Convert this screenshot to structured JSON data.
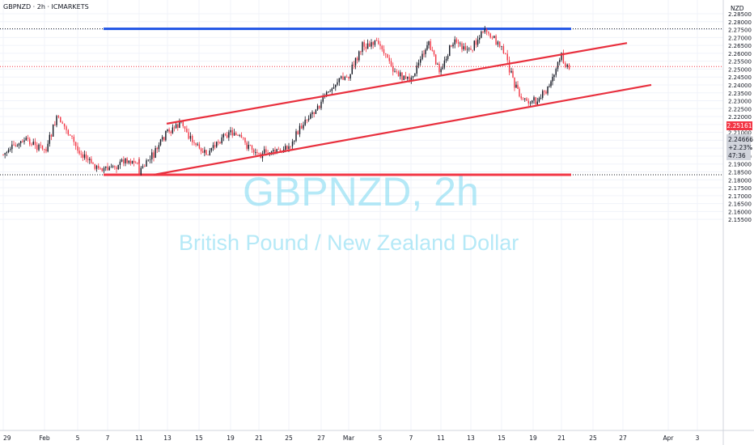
{
  "header": {
    "title": "GBPNZD · 2h · ICMARKETS"
  },
  "watermark": {
    "symbol": "GBPNZD, 2h",
    "description": "British Pound / New Zealand Dollar"
  },
  "axis": {
    "currency": "NZD"
  },
  "price_labels": {
    "last_price": "2.25161",
    "current_price": "2.24666",
    "change": "+2.23%",
    "countdown": "47:36"
  },
  "colors": {
    "up_candle": "#131722",
    "down_candle": "#f23645",
    "resistance": "#1e53e5",
    "support": "#f23645",
    "channel": "#e8303e",
    "grid": "#f0f3fa"
  },
  "chart_data": {
    "type": "candlestick",
    "symbol": "GBPNZD",
    "timeframe": "2h",
    "exchange": "ICMARKETS",
    "y_axis": {
      "min": 2.155,
      "max": 2.285,
      "ticks": [
        "2.28500",
        "2.28000",
        "2.27500",
        "2.27000",
        "2.26500",
        "2.26000",
        "2.25500",
        "2.25000",
        "2.24500",
        "2.24000",
        "2.23500",
        "2.23000",
        "2.22500",
        "2.22000",
        "2.21500",
        "2.21000",
        "2.20500",
        "2.20000",
        "2.19500",
        "2.19000",
        "2.18500",
        "2.18000",
        "2.17500",
        "2.17000",
        "2.16500",
        "2.16000",
        "2.15500"
      ]
    },
    "x_axis": {
      "ticks": [
        "29",
        "Feb",
        "5",
        "7",
        "11",
        "13",
        "15",
        "19",
        "21",
        "25",
        "27",
        "Mar",
        "5",
        "7",
        "11",
        "13",
        "15",
        "19",
        "21",
        "25",
        "27",
        "Apr",
        "3"
      ]
    },
    "price_path": [
      {
        "date": "Jan 29",
        "price": 2.196
      },
      {
        "date": "Jan 31",
        "price": 2.205
      },
      {
        "date": "Feb 1",
        "price": 2.199
      },
      {
        "date": "Feb 2",
        "price": 2.219
      },
      {
        "date": "Feb 3",
        "price": 2.212
      },
      {
        "date": "Feb 5",
        "price": 2.199
      },
      {
        "date": "Feb 6",
        "price": 2.189
      },
      {
        "date": "Feb 7",
        "price": 2.186
      },
      {
        "date": "Feb 9",
        "price": 2.193
      },
      {
        "date": "Feb 11",
        "price": 2.191
      },
      {
        "date": "Feb 11",
        "price": 2.185
      },
      {
        "date": "Feb 12",
        "price": 2.196
      },
      {
        "date": "Feb 13",
        "price": 2.21
      },
      {
        "date": "Feb 14",
        "price": 2.216
      },
      {
        "date": "Feb 15",
        "price": 2.203
      },
      {
        "date": "Feb 16",
        "price": 2.195
      },
      {
        "date": "Feb 18",
        "price": 2.206
      },
      {
        "date": "Feb 19",
        "price": 2.211
      },
      {
        "date": "Feb 20",
        "price": 2.203
      },
      {
        "date": "Feb 21",
        "price": 2.197
      },
      {
        "date": "Feb 23",
        "price": 2.197
      },
      {
        "date": "Feb 25",
        "price": 2.201
      },
      {
        "date": "Feb 26",
        "price": 2.216
      },
      {
        "date": "Feb 27",
        "price": 2.229
      },
      {
        "date": "Feb 28",
        "price": 2.243
      },
      {
        "date": "Mar 1",
        "price": 2.246
      },
      {
        "date": "Mar 3",
        "price": 2.265
      },
      {
        "date": "Mar 5",
        "price": 2.266
      },
      {
        "date": "Mar 6",
        "price": 2.248
      },
      {
        "date": "Mar 7",
        "price": 2.243
      },
      {
        "date": "Mar 9",
        "price": 2.258
      },
      {
        "date": "Mar 10",
        "price": 2.266
      },
      {
        "date": "Mar 11",
        "price": 2.248
      },
      {
        "date": "Mar 12",
        "price": 2.267
      },
      {
        "date": "Mar 13",
        "price": 2.262
      },
      {
        "date": "Mar 14",
        "price": 2.275
      },
      {
        "date": "Mar 15",
        "price": 2.264
      },
      {
        "date": "Mar 16",
        "price": 2.247
      },
      {
        "date": "Mar 17",
        "price": 2.232
      },
      {
        "date": "Mar 18",
        "price": 2.229
      },
      {
        "date": "Mar 19",
        "price": 2.235
      },
      {
        "date": "Mar 20",
        "price": 2.247
      },
      {
        "date": "Mar 21",
        "price": 2.258
      },
      {
        "date": "Mar 22",
        "price": 2.247
      }
    ],
    "horizontal_levels": [
      {
        "name": "resistance",
        "value": 2.2755,
        "color": "#1e53e5",
        "from": "Feb 7",
        "to": "Mar 21"
      },
      {
        "name": "support",
        "value": 2.1832,
        "color": "#f23645",
        "from": "Feb 7",
        "to": "Mar 21"
      },
      {
        "name": "last-price",
        "value": 2.25161,
        "style": "dotted"
      }
    ],
    "trendlines": [
      {
        "name": "channel-upper",
        "from": {
          "date": "Feb 11",
          "price": 2.2155
        },
        "to": {
          "date": "Mar 25",
          "price": 2.2665
        }
      },
      {
        "name": "channel-lower",
        "from": {
          "date": "Feb 12",
          "price": 2.1832
        },
        "to": {
          "date": "Mar 27",
          "price": 2.24
        }
      }
    ],
    "grid": true,
    "legend": "none"
  }
}
